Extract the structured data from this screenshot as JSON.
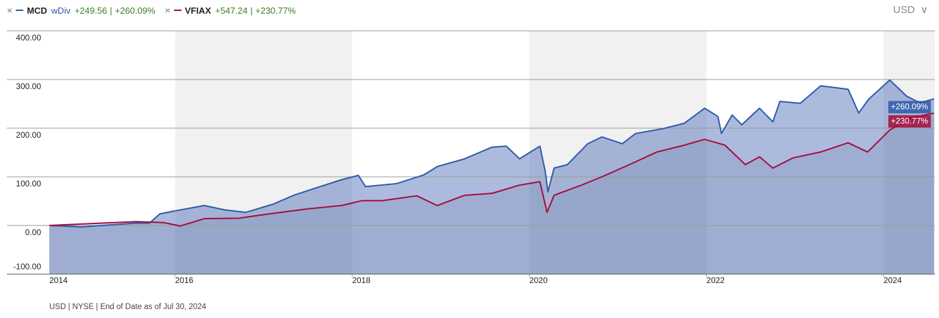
{
  "chart_data": {
    "type": "line",
    "currency": "USD",
    "footnote": "USD | NYSE | End of Date as of Jul 30, 2024",
    "xlim": [
      2014.58,
      2024.58
    ],
    "xticks": [
      2014,
      2016,
      2018,
      2020,
      2022,
      2024
    ],
    "ylim": [
      -100,
      400
    ],
    "yticks": [
      {
        "value": -100,
        "label": "-100.00"
      },
      {
        "value": 0,
        "label": "0.00"
      },
      {
        "value": 100,
        "label": "100.00"
      },
      {
        "value": 200,
        "label": "200.00"
      },
      {
        "value": 300,
        "label": "300.00"
      },
      {
        "value": 400,
        "label": "400.00"
      }
    ],
    "grid": true,
    "series": [
      {
        "name": "MCD",
        "tag": "wDiv",
        "change": "+249.56",
        "color": "#2f5aa8",
        "x": [
          2014.58,
          2014.94,
          2015.56,
          2015.71,
          2015.83,
          2016.0,
          2016.33,
          2016.56,
          2016.8,
          2017.11,
          2017.34,
          2017.57,
          2017.88,
          2018.07,
          2018.15,
          2018.5,
          2018.81,
          2018.96,
          2019.27,
          2019.58,
          2019.74,
          2019.89,
          2020.12,
          2020.18,
          2020.21,
          2020.28,
          2020.43,
          2020.66,
          2020.82,
          2021.05,
          2021.2,
          2021.51,
          2021.75,
          2021.98,
          2022.13,
          2022.17,
          2022.29,
          2022.4,
          2022.6,
          2022.75,
          2022.83,
          2023.06,
          2023.29,
          2023.6,
          2023.72,
          2023.83,
          2024.07,
          2024.26,
          2024.41,
          2024.57
        ],
        "values": [
          0,
          -3,
          5,
          5,
          24,
          30,
          41,
          32,
          27,
          44,
          62,
          76,
          94,
          103,
          80,
          86,
          104,
          121,
          137,
          161,
          163,
          137,
          163,
          111,
          69,
          118,
          125,
          168,
          182,
          168,
          189,
          199,
          210,
          241,
          224,
          189,
          227,
          207,
          241,
          213,
          255,
          251,
          287,
          280,
          231,
          259,
          299,
          266,
          252,
          260.09
        ],
        "value_labels": [
          null,
          null,
          null,
          null,
          null,
          null,
          null,
          null,
          null,
          null,
          null,
          null,
          null,
          null,
          null,
          null,
          null,
          null,
          null,
          null,
          null,
          null,
          null,
          null,
          null,
          null,
          null,
          null,
          null,
          null,
          null,
          null,
          null,
          null,
          null,
          null,
          null,
          null,
          null,
          null,
          null,
          null,
          null,
          null,
          null,
          null,
          null,
          null,
          null,
          "+260.09%"
        ]
      },
      {
        "name": "VFIAX",
        "change": "+547.24",
        "color": "#a50d3b",
        "x": [
          2014.58,
          2014.94,
          2015.56,
          2015.87,
          2016.06,
          2016.33,
          2016.72,
          2017.11,
          2017.49,
          2017.88,
          2018.11,
          2018.34,
          2018.73,
          2018.96,
          2019.27,
          2019.58,
          2019.89,
          2020.12,
          2020.2,
          2020.28,
          2020.59,
          2020.82,
          2021.13,
          2021.44,
          2021.75,
          2021.98,
          2022.21,
          2022.44,
          2022.6,
          2022.75,
          2022.98,
          2023.29,
          2023.6,
          2023.82,
          2024.07,
          2024.3,
          2024.57
        ],
        "values": [
          0,
          3,
          8,
          6,
          -1,
          14,
          15,
          25,
          34,
          41,
          51,
          51,
          61,
          41,
          62,
          66,
          83,
          90,
          27,
          62,
          83,
          100,
          125,
          151,
          165,
          177,
          165,
          125,
          141,
          118,
          139,
          151,
          170,
          151,
          196,
          221,
          230.77
        ],
        "value_labels": [
          null,
          null,
          null,
          null,
          null,
          null,
          null,
          null,
          null,
          null,
          null,
          null,
          null,
          null,
          null,
          null,
          null,
          null,
          null,
          null,
          null,
          null,
          null,
          null,
          null,
          null,
          null,
          null,
          null,
          null,
          null,
          null,
          null,
          null,
          null,
          null,
          "+230.77%"
        ]
      }
    ]
  }
}
